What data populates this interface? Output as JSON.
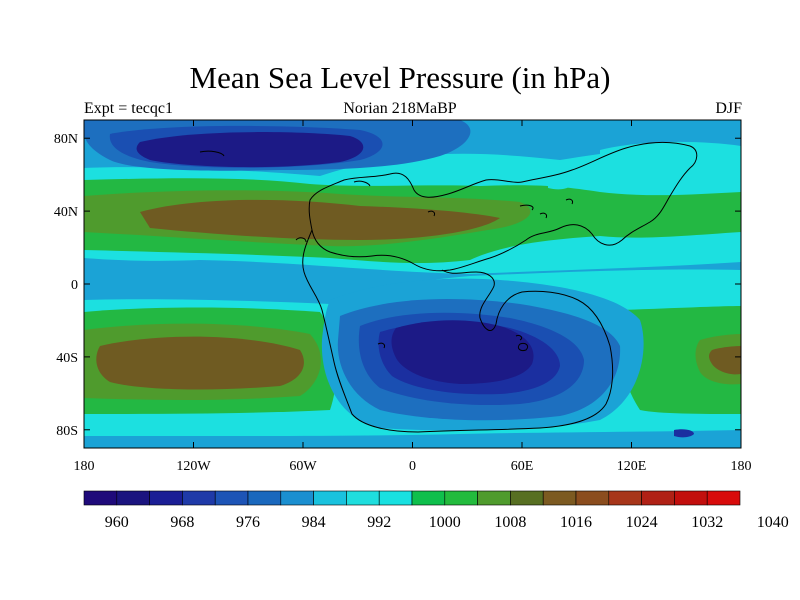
{
  "title": "Mean Sea Level Pressure (in hPa)",
  "left_label": "Expt = tecqc1",
  "center_label": "Norian 218MaBP",
  "right_label": "DJF",
  "x_ticks": [
    {
      "lon": -180,
      "label": "180"
    },
    {
      "lon": -120,
      "label": "120W"
    },
    {
      "lon": -60,
      "label": "60W"
    },
    {
      "lon": 0,
      "label": "0"
    },
    {
      "lon": 60,
      "label": "60E"
    },
    {
      "lon": 120,
      "label": "120E"
    },
    {
      "lon": 180,
      "label": "180"
    }
  ],
  "y_ticks": [
    {
      "lat": 80,
      "label": "80N"
    },
    {
      "lat": 40,
      "label": "40N"
    },
    {
      "lat": 0,
      "label": "0"
    },
    {
      "lat": -40,
      "label": "40S"
    },
    {
      "lat": -80,
      "label": "80S"
    }
  ],
  "colorbar": {
    "colors": [
      "#1f0a7a",
      "#1b147f",
      "#1b1e95",
      "#1f3aa8",
      "#1d54b6",
      "#1a68bd",
      "#1b8fd0",
      "#19c2de",
      "#1fdede",
      "#18e0e0",
      "#0fbf4c",
      "#23bb3d",
      "#4f9b2d",
      "#576f22",
      "#7c5a21",
      "#8b4d1e",
      "#a7361a",
      "#b02116",
      "#c20f0d",
      "#d80b0b"
    ],
    "labels": [
      {
        "index": 1,
        "text": "960"
      },
      {
        "index": 3,
        "text": "968"
      },
      {
        "index": 5,
        "text": "976"
      },
      {
        "index": 7,
        "text": "984"
      },
      {
        "index": 9,
        "text": "992"
      },
      {
        "index": 11,
        "text": "1000"
      },
      {
        "index": 13,
        "text": "1008"
      },
      {
        "index": 15,
        "text": "1016"
      },
      {
        "index": 17,
        "text": "1024"
      },
      {
        "index": 19,
        "text": "1032"
      },
      {
        "index": 21,
        "text": "1040"
      }
    ]
  },
  "map_colors": {
    "bg": "#1ba3d6",
    "cyan": "#1ce0e0",
    "green": "#23b843",
    "olive": "#4f9b2d",
    "brown": "#6f5b22",
    "blue1": "#1d6fbf",
    "blue2": "#1a4fb2",
    "blue3": "#1b2fa0",
    "navy": "#1c1a86",
    "coast": "#000000"
  }
}
